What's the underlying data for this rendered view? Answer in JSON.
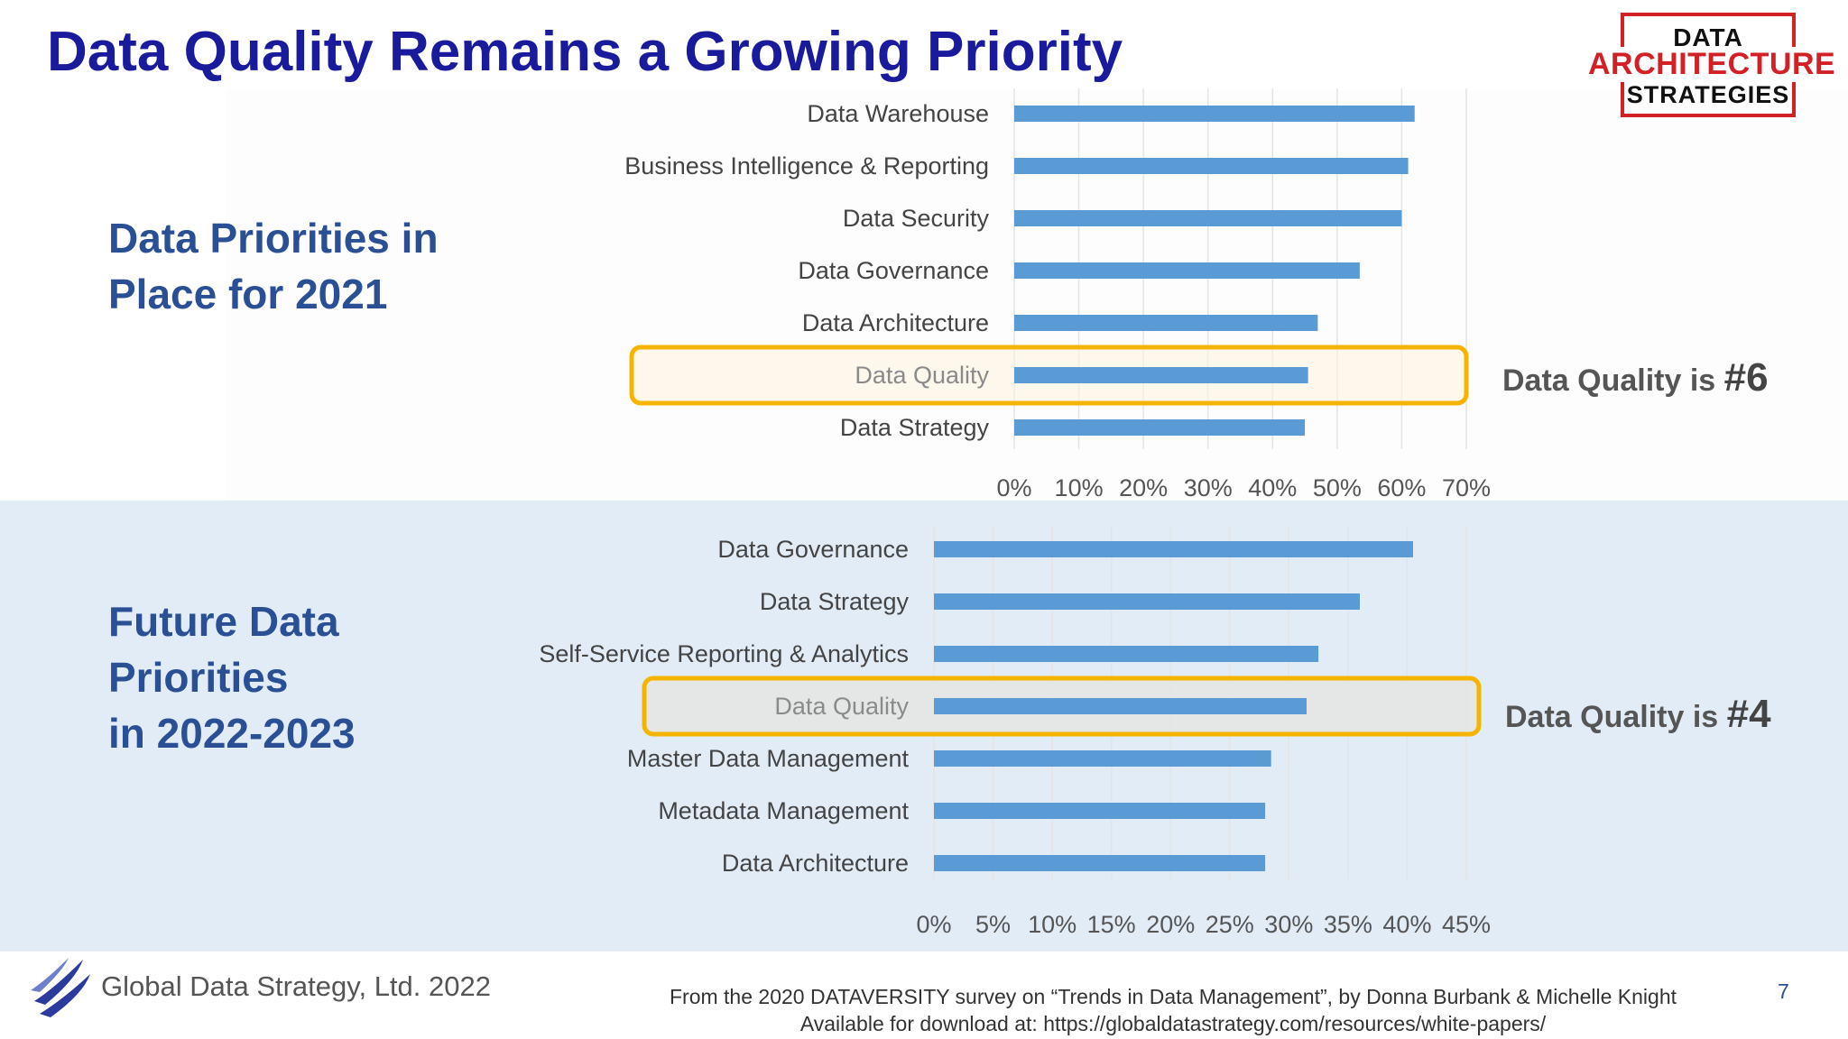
{
  "title": "Data Quality Remains a Growing Priority",
  "logo": {
    "line1": "DATA",
    "line2": "ARCHITECTURE",
    "line3": "STRATEGIES"
  },
  "section1": {
    "heading_line1": "Data Priorities in",
    "heading_line2": "Place for 2021",
    "callout_text": "Data Quality is ",
    "callout_rank": "#6"
  },
  "section2": {
    "heading_line1": "Future Data",
    "heading_line2": "Priorities",
    "heading_line3": "in 2022-2023",
    "callout_text": "Data Quality is ",
    "callout_rank": "#4"
  },
  "colors": {
    "bar": "#5b9bd5",
    "highlight": "#f5b400",
    "title": "#1a1a9c",
    "heading": "#2a4f95"
  },
  "chart_data": [
    {
      "type": "bar",
      "orientation": "horizontal",
      "categories": [
        "Data Warehouse",
        "Business Intelligence & Reporting",
        "Data Security",
        "Data Governance",
        "Data Architecture",
        "Data Quality",
        "Data Strategy"
      ],
      "values": [
        62,
        61,
        60,
        53.5,
        47,
        45.5,
        45
      ],
      "xlim": [
        0,
        70
      ],
      "xticks": [
        "0%",
        "10%",
        "20%",
        "30%",
        "40%",
        "50%",
        "60%",
        "70%"
      ],
      "highlight": "Data Quality",
      "grid": true
    },
    {
      "type": "bar",
      "orientation": "horizontal",
      "categories": [
        "Data Governance",
        "Data Strategy",
        "Self-Service Reporting & Analytics",
        "Data Quality",
        "Master Data Management",
        "Metadata Management",
        "Data Architecture"
      ],
      "values": [
        40.5,
        36,
        32.5,
        31.5,
        28.5,
        28,
        28
      ],
      "xlim": [
        0,
        45
      ],
      "xticks": [
        "0%",
        "5%",
        "10%",
        "15%",
        "20%",
        "25%",
        "30%",
        "35%",
        "40%",
        "45%"
      ],
      "highlight": "Data Quality",
      "grid": true
    }
  ],
  "footer": {
    "company": "Global Data Strategy, Ltd. 2022",
    "source_line1": "From the 2020 DATAVERSITY survey on “Trends in Data Management”, by Donna Burbank & Michelle Knight",
    "source_line2": "Available for download at:  https://globaldatastrategy.com/resources/white-papers/",
    "page_number": "7"
  }
}
